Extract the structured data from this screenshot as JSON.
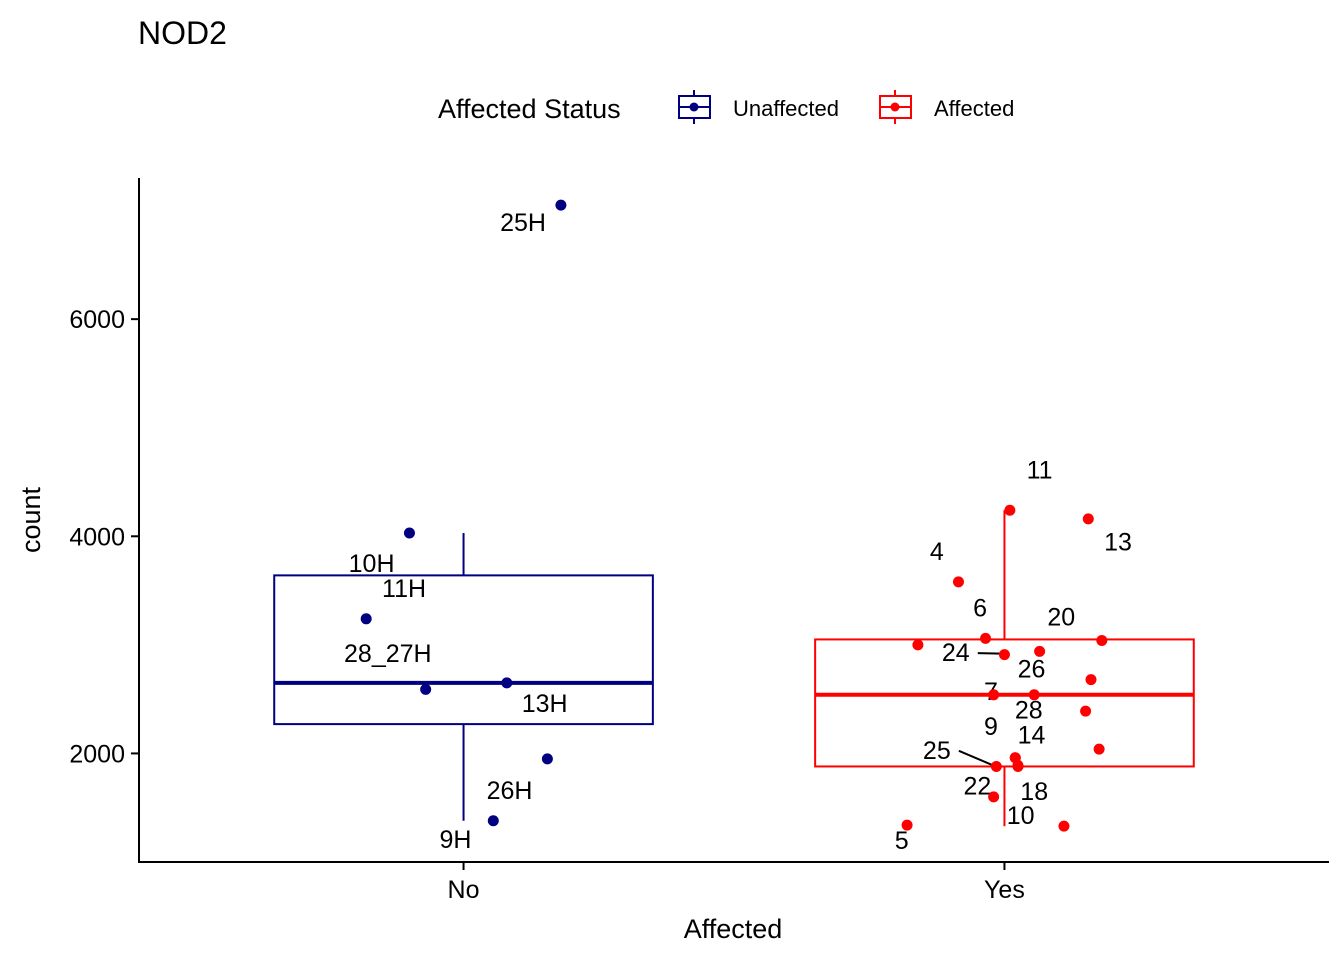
{
  "chart_data": {
    "type": "boxplot",
    "title": "NOD2",
    "xlabel": "Affected",
    "ylabel": "count",
    "ylim": [
      1000,
      7300
    ],
    "yticks": [
      2000,
      4000,
      6000
    ],
    "categories": [
      "No",
      "Yes"
    ],
    "legend": {
      "title": "Affected Status",
      "position": "top",
      "entries": [
        {
          "label": "Unaffected",
          "color": "#000080"
        },
        {
          "label": "Affected",
          "color": "#ff0000"
        }
      ]
    },
    "grid": false,
    "series": [
      {
        "name": "Unaffected",
        "category": "No",
        "color": "#000080",
        "box": {
          "whisker_low": 1380,
          "q1": 2270,
          "median": 2650,
          "q3": 3640,
          "whisker_high": 4030
        },
        "points": [
          {
            "jitter": 0.18,
            "y": 7050,
            "label": "25H",
            "label_dx": -0.07,
            "label_y": 6810
          },
          {
            "jitter": -0.1,
            "y": 4030,
            "label": "10H",
            "label_dx": -0.07,
            "label_y": 3670
          },
          {
            "jitter": -0.18,
            "y": 3240,
            "label": "11H",
            "label_dx": 0.07,
            "label_y": 3440
          },
          {
            "jitter": -0.07,
            "y": 2590,
            "label": "28_27H",
            "label_dx": -0.07,
            "label_y": 2840
          },
          {
            "jitter": 0.08,
            "y": 2650,
            "label": "13H",
            "label_dx": 0.07,
            "label_y": 2380
          },
          {
            "jitter": 0.155,
            "y": 1950,
            "label": "26H",
            "label_dx": -0.07,
            "label_y": 1580
          },
          {
            "jitter": 0.055,
            "y": 1380,
            "label": "9H",
            "label_dx": -0.07,
            "label_y": 1130
          }
        ]
      },
      {
        "name": "Affected",
        "category": "Yes",
        "color": "#ff0000",
        "box": {
          "whisker_low": 1330,
          "q1": 1880,
          "median": 2540,
          "q3": 3050,
          "whisker_high": 4240
        },
        "points": [
          {
            "jitter": 0.01,
            "y": 4240,
            "label": "11",
            "label_dx": 0.055,
            "label_y": 4530
          },
          {
            "jitter": 0.155,
            "y": 4160,
            "label": "13",
            "label_dx": 0.055,
            "label_y": 3870
          },
          {
            "jitter": -0.085,
            "y": 3580,
            "label": "4",
            "label_dx": -0.04,
            "label_y": 3780
          },
          {
            "jitter": -0.035,
            "y": 3060,
            "label": "6",
            "label_dx": -0.01,
            "label_y": 3260
          },
          {
            "jitter": 0.18,
            "y": 3040,
            "label": "20",
            "label_dx": -0.075,
            "label_y": 3180
          },
          {
            "jitter": -0.16,
            "y": 3000,
            "label": "",
            "label_dx": 0,
            "label_y": 0
          },
          {
            "jitter": 0.065,
            "y": 2940,
            "label": "26",
            "label_dx": -0.015,
            "label_y": 2700
          },
          {
            "jitter": 0.0,
            "y": 2910,
            "label": "24",
            "label_dx": -0.09,
            "label_y": 2850,
            "leader": true
          },
          {
            "jitter": 0.16,
            "y": 2680,
            "label": "",
            "label_dx": 0,
            "label_y": 0
          },
          {
            "jitter": -0.02,
            "y": 2540,
            "label": "7",
            "label_dx": -0.005,
            "label_y": 2490
          },
          {
            "jitter": 0.055,
            "y": 2540,
            "label": "28",
            "label_dx": -0.01,
            "label_y": 2320
          },
          {
            "jitter": 0.15,
            "y": 2390,
            "label": "",
            "label_dx": 0,
            "label_y": 0
          },
          {
            "jitter": 0.175,
            "y": 2040,
            "label": "",
            "label_dx": 0,
            "label_y": 0
          },
          {
            "jitter": 0.02,
            "y": 1960,
            "label": "14",
            "label_dx": 0.03,
            "label_y": 2090
          },
          {
            "jitter": 0.02,
            "y": 1960,
            "label": "9",
            "label_dx": -0.045,
            "label_y": 2170
          },
          {
            "jitter": 0.025,
            "y": 1890,
            "label": "",
            "label_dx": 0,
            "label_y": 0
          },
          {
            "jitter": -0.015,
            "y": 1880,
            "label": "25",
            "label_dx": -0.11,
            "label_y": 1950,
            "leader": true
          },
          {
            "jitter": 0.025,
            "y": 1880,
            "label": "18",
            "label_dx": 0.03,
            "label_y": 1570
          },
          {
            "jitter": -0.02,
            "y": 1600,
            "label": "22",
            "label_dx": -0.03,
            "label_y": 1620
          },
          {
            "jitter": -0.18,
            "y": 1340,
            "label": "5",
            "label_dx": -0.01,
            "label_y": 1120
          },
          {
            "jitter": 0.11,
            "y": 1330,
            "label": "10",
            "label_dx": -0.08,
            "label_y": 1350
          }
        ]
      }
    ]
  }
}
